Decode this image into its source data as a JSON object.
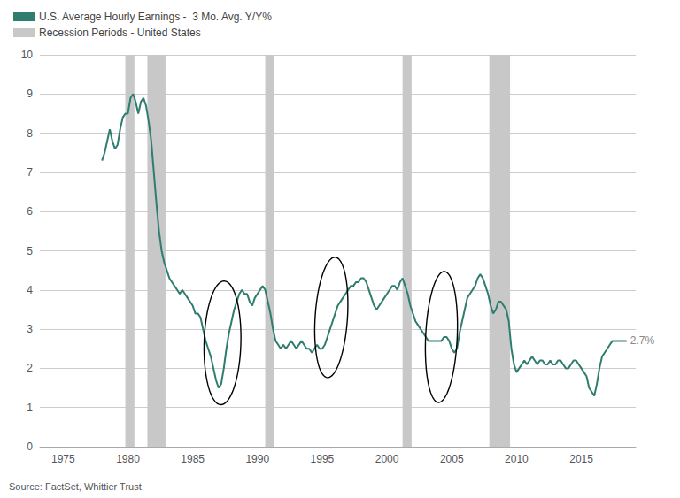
{
  "chart_data": {
    "type": "line",
    "x": [
      1978.0,
      1978.2,
      1978.4,
      1978.6,
      1978.8,
      1979.0,
      1979.2,
      1979.4,
      1979.6,
      1979.8,
      1980.0,
      1980.2,
      1980.4,
      1980.6,
      1980.8,
      1981.0,
      1981.2,
      1981.4,
      1981.6,
      1981.8,
      1982.0,
      1982.2,
      1982.4,
      1982.6,
      1982.8,
      1983.0,
      1983.2,
      1983.4,
      1983.6,
      1983.8,
      1984.0,
      1984.2,
      1984.4,
      1984.6,
      1984.8,
      1985.0,
      1985.2,
      1985.4,
      1985.6,
      1985.8,
      1986.0,
      1986.2,
      1986.4,
      1986.6,
      1986.8,
      1987.0,
      1987.2,
      1987.4,
      1987.6,
      1987.8,
      1988.0,
      1988.2,
      1988.4,
      1988.6,
      1988.8,
      1989.0,
      1989.2,
      1989.4,
      1989.6,
      1989.8,
      1990.0,
      1990.2,
      1990.4,
      1990.6,
      1990.8,
      1991.0,
      1991.2,
      1991.4,
      1991.6,
      1991.8,
      1992.0,
      1992.2,
      1992.4,
      1992.6,
      1992.8,
      1993.0,
      1993.2,
      1993.4,
      1993.6,
      1993.8,
      1994.0,
      1994.2,
      1994.4,
      1994.6,
      1994.8,
      1995.0,
      1995.2,
      1995.4,
      1995.6,
      1995.8,
      1996.0,
      1996.2,
      1996.4,
      1996.6,
      1996.8,
      1997.0,
      1997.2,
      1997.4,
      1997.6,
      1997.8,
      1998.0,
      1998.2,
      1998.4,
      1998.6,
      1998.8,
      1999.0,
      1999.2,
      1999.4,
      1999.6,
      1999.8,
      2000.0,
      2000.2,
      2000.4,
      2000.6,
      2000.8,
      2001.0,
      2001.2,
      2001.4,
      2001.6,
      2001.8,
      2002.0,
      2002.2,
      2002.4,
      2002.6,
      2002.8,
      2003.0,
      2003.2,
      2003.4,
      2003.6,
      2003.8,
      2004.0,
      2004.2,
      2004.4,
      2004.6,
      2004.8,
      2005.0,
      2005.2,
      2005.4,
      2005.6,
      2005.8,
      2006.0,
      2006.2,
      2006.4,
      2006.6,
      2006.8,
      2007.0,
      2007.2,
      2007.4,
      2007.6,
      2007.8,
      2008.0,
      2008.2,
      2008.4,
      2008.6,
      2008.8,
      2009.0,
      2009.2,
      2009.4,
      2009.6,
      2009.8,
      2010.0,
      2010.2,
      2010.4,
      2010.6,
      2010.8,
      2011.0,
      2011.2,
      2011.4,
      2011.6,
      2011.8,
      2012.0,
      2012.2,
      2012.4,
      2012.6,
      2012.8,
      2013.0,
      2013.2,
      2013.4,
      2013.6,
      2013.8,
      2014.0,
      2014.2,
      2014.4,
      2014.6,
      2014.8,
      2015.0,
      2015.2,
      2015.4,
      2015.6,
      2015.8,
      2016.0,
      2016.2,
      2016.4,
      2016.6,
      2016.8,
      2017.0,
      2017.2,
      2017.4,
      2017.6,
      2017.8,
      2018.0,
      2018.2,
      2018.5
    ],
    "series": [
      {
        "name": "U.S. Average Hourly Earnings -  3 Mo. Avg. Y/Y%",
        "color": "#2e7d6e",
        "values": [
          7.3,
          7.5,
          7.8,
          8.1,
          7.8,
          7.6,
          7.7,
          8.1,
          8.4,
          8.5,
          8.5,
          8.9,
          9.0,
          8.8,
          8.5,
          8.8,
          8.9,
          8.7,
          8.3,
          7.8,
          7.0,
          6.2,
          5.5,
          5.0,
          4.7,
          4.5,
          4.3,
          4.2,
          4.1,
          4.0,
          3.9,
          4.0,
          3.9,
          3.8,
          3.7,
          3.6,
          3.4,
          3.4,
          3.3,
          3.0,
          2.7,
          2.5,
          2.3,
          2.0,
          1.7,
          1.5,
          1.6,
          2.0,
          2.5,
          2.9,
          3.2,
          3.5,
          3.7,
          3.9,
          4.0,
          3.9,
          3.9,
          3.7,
          3.6,
          3.8,
          3.9,
          4.0,
          4.1,
          4.0,
          3.7,
          3.4,
          3.0,
          2.7,
          2.6,
          2.5,
          2.6,
          2.5,
          2.6,
          2.7,
          2.6,
          2.5,
          2.6,
          2.7,
          2.6,
          2.5,
          2.5,
          2.4,
          2.5,
          2.6,
          2.5,
          2.5,
          2.6,
          2.8,
          3.0,
          3.2,
          3.4,
          3.6,
          3.7,
          3.8,
          3.9,
          4.0,
          4.1,
          4.1,
          4.2,
          4.2,
          4.3,
          4.3,
          4.2,
          4.0,
          3.8,
          3.6,
          3.5,
          3.6,
          3.7,
          3.8,
          3.9,
          4.0,
          4.1,
          4.1,
          4.0,
          4.2,
          4.3,
          4.1,
          3.9,
          3.6,
          3.4,
          3.2,
          3.1,
          3.0,
          2.9,
          2.8,
          2.7,
          2.7,
          2.7,
          2.7,
          2.7,
          2.7,
          2.8,
          2.8,
          2.7,
          2.5,
          2.4,
          2.5,
          2.9,
          3.2,
          3.5,
          3.8,
          3.9,
          4.0,
          4.1,
          4.3,
          4.4,
          4.3,
          4.1,
          3.9,
          3.6,
          3.4,
          3.5,
          3.7,
          3.7,
          3.6,
          3.5,
          3.2,
          2.5,
          2.1,
          1.9,
          2.0,
          2.1,
          2.2,
          2.1,
          2.2,
          2.3,
          2.2,
          2.1,
          2.2,
          2.2,
          2.1,
          2.1,
          2.2,
          2.1,
          2.1,
          2.2,
          2.2,
          2.1,
          2.0,
          2.0,
          2.1,
          2.2,
          2.2,
          2.1,
          2.0,
          1.9,
          1.8,
          1.5,
          1.4,
          1.3,
          1.6,
          2.0,
          2.3,
          2.4,
          2.5,
          2.6,
          2.7,
          2.7,
          2.7,
          2.7,
          2.7,
          2.7
        ]
      },
      {
        "name": "Recession Periods - United States",
        "color": "#c8c8c8",
        "type": "span",
        "periods": [
          [
            1979.8,
            1980.5
          ],
          [
            1981.5,
            1982.9
          ],
          [
            1990.6,
            1991.3
          ],
          [
            2001.2,
            2001.9
          ],
          [
            2007.9,
            2009.5
          ]
        ]
      }
    ],
    "ellipses": [
      {
        "x": 1987.3,
        "y": 2.65,
        "width": 2.8,
        "height": 3.2,
        "angle": -20
      },
      {
        "x": 1995.7,
        "y": 3.3,
        "width": 2.4,
        "height": 3.2,
        "angle": -25
      },
      {
        "x": 2004.2,
        "y": 2.8,
        "width": 2.4,
        "height": 3.4,
        "angle": -15
      }
    ],
    "annotations": [
      {
        "text": "2.7%",
        "x": 2018.5,
        "y": 2.7
      }
    ],
    "source": "Source: FactSet, Whittier Trust",
    "xlim": [
      1973.2,
      2019.2
    ],
    "xticks": [
      1975,
      1980,
      1985,
      1990,
      1995,
      2000,
      2005,
      2010,
      2015
    ],
    "ylim": [
      0,
      10
    ],
    "yticks": [
      0,
      1,
      2,
      3,
      4,
      5,
      6,
      7,
      8,
      9,
      10
    ],
    "grid": true,
    "legend": "upper left"
  }
}
